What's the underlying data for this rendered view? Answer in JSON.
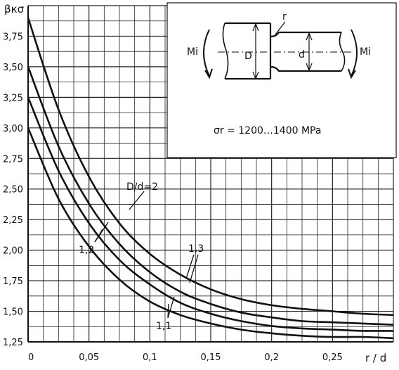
{
  "chart_data": {
    "type": "line",
    "ylabel": "βкσ",
    "xlabel": "r / d",
    "xlim": [
      0,
      0.3
    ],
    "ylim": [
      1.25,
      4.0
    ],
    "grid": true,
    "x_ticks": [
      0,
      0.05,
      0.1,
      0.15,
      0.2,
      0.25
    ],
    "x_tick_labels": [
      "0",
      "0,05",
      "0,1",
      "0,15",
      "0,2",
      "0,25"
    ],
    "y_ticks": [
      1.25,
      1.5,
      1.75,
      2.0,
      2.25,
      2.5,
      2.75,
      3.0,
      3.25,
      3.5,
      3.75
    ],
    "y_tick_labels": [
      "1,25",
      "1,50",
      "1,75",
      "2,00",
      "2,25",
      "2,50",
      "2,75",
      "3,00",
      "3,25",
      "3,50",
      "3,75"
    ],
    "x": [
      0,
      0.025,
      0.05,
      0.075,
      0.1,
      0.125,
      0.15,
      0.175,
      0.2,
      0.225,
      0.25,
      0.275,
      0.3
    ],
    "series": [
      {
        "label": "D/d=2",
        "values": [
          3.9,
          3.15,
          2.6,
          2.22,
          1.97,
          1.8,
          1.68,
          1.6,
          1.55,
          1.52,
          1.5,
          1.48,
          1.47
        ]
      },
      {
        "label": "1,3",
        "values": [
          3.5,
          2.85,
          2.38,
          2.05,
          1.82,
          1.66,
          1.56,
          1.49,
          1.45,
          1.42,
          1.41,
          1.4,
          1.39
        ]
      },
      {
        "label": "1,2",
        "values": [
          3.25,
          2.65,
          2.22,
          1.92,
          1.72,
          1.57,
          1.48,
          1.42,
          1.38,
          1.36,
          1.35,
          1.34,
          1.34
        ]
      },
      {
        "label": "1,1",
        "values": [
          3.0,
          2.42,
          2.03,
          1.76,
          1.58,
          1.47,
          1.4,
          1.35,
          1.32,
          1.3,
          1.29,
          1.29,
          1.28
        ]
      }
    ],
    "annotations": {
      "stress": "σr = 1200…1400 MPa",
      "moment_left": "Mi",
      "moment_right": "Mi",
      "diam_big": "D",
      "diam_small": "d",
      "fillet": "r"
    }
  }
}
